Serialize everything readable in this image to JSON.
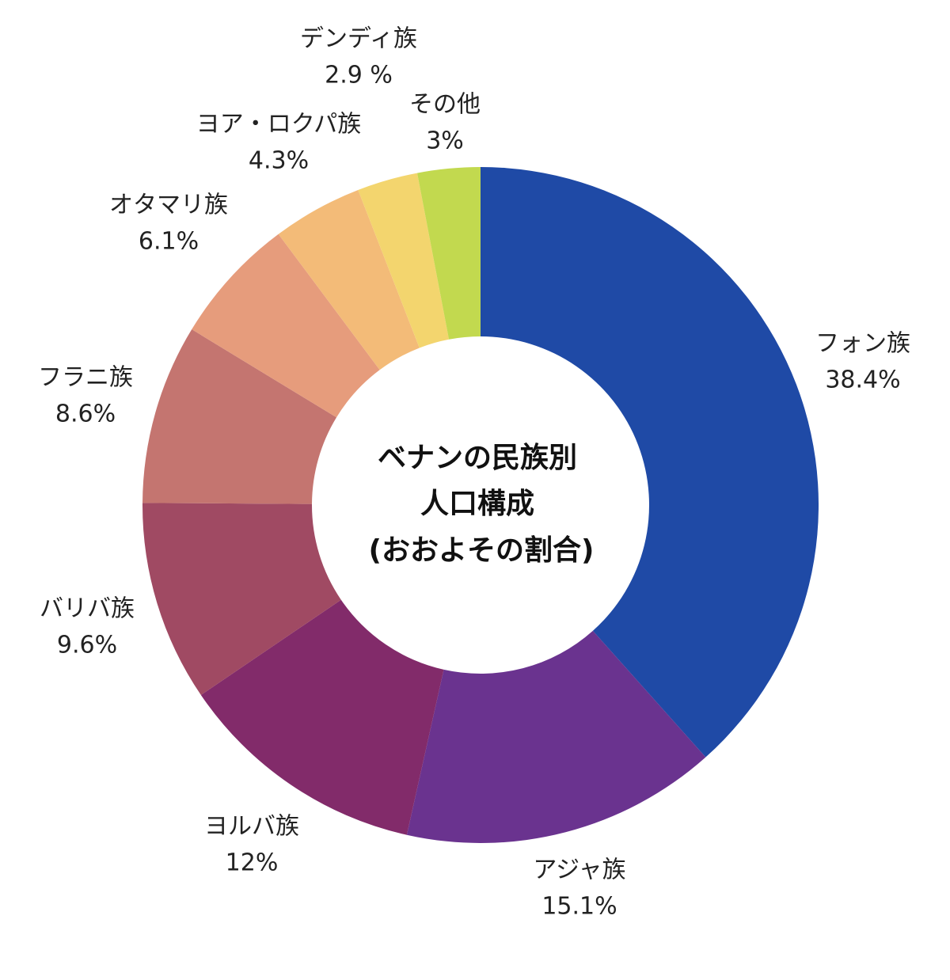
{
  "chart_data": {
    "type": "donut",
    "title": [
      "ベナンの民族別",
      "人口構成",
      "(おおよその割合)"
    ],
    "categories": [
      "フォン族",
      "アジャ族",
      "ヨルバ族",
      "バリバ族",
      "フラニ族",
      "オタマリ族",
      "ヨア・ロクパ族",
      "デンディ族",
      "その他"
    ],
    "values": [
      38.4,
      15.1,
      12,
      9.6,
      8.6,
      6.1,
      4.3,
      2.9,
      3
    ],
    "value_labels": [
      "38.4%",
      "15.1%",
      "12%",
      "9.6%",
      "8.6%",
      "6.1%",
      "4.3%",
      "2.9 %",
      "3%"
    ],
    "colors": [
      "#1f4aa6",
      "#6a338f",
      "#822b6a",
      "#a04a63",
      "#c47570",
      "#e69c7c",
      "#f3bb78",
      "#f3d56e",
      "#c2d94f"
    ]
  }
}
